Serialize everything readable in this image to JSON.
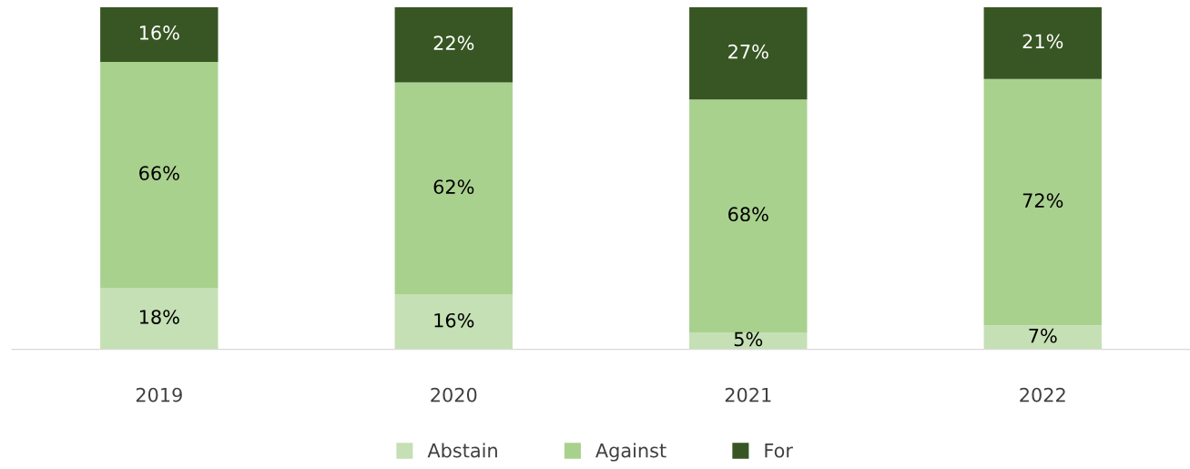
{
  "chart_data": {
    "type": "bar",
    "stacked": true,
    "categories": [
      "2019",
      "2020",
      "2021",
      "2022"
    ],
    "series": [
      {
        "name": "Abstain",
        "color": "#c5e0b4",
        "values": [
          18,
          16,
          5,
          7
        ],
        "value_labels": [
          "18%",
          "16%",
          "5%",
          "7%"
        ]
      },
      {
        "name": "Against",
        "color": "#a9d18e",
        "values": [
          66,
          62,
          68,
          72
        ],
        "value_labels": [
          "66%",
          "62%",
          "68%",
          "72%"
        ]
      },
      {
        "name": "For",
        "color": "#375623",
        "values": [
          16,
          22,
          27,
          21
        ],
        "value_labels": [
          "16%",
          "22%",
          "27%",
          "21%"
        ]
      }
    ],
    "tick_labels": "x",
    "legend": "bottom"
  }
}
